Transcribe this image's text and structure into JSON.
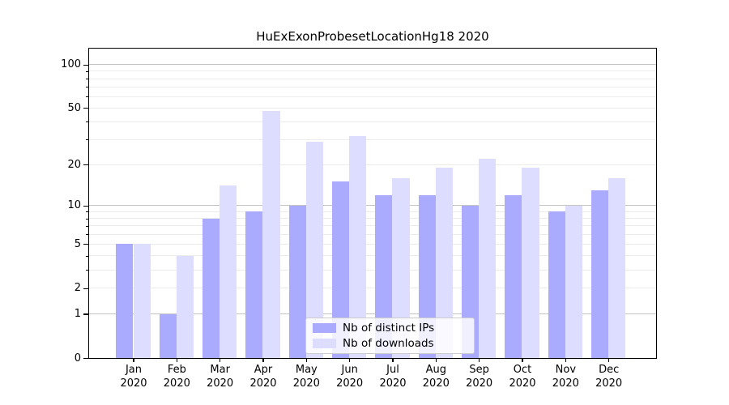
{
  "chart_data": {
    "type": "bar",
    "title": "HuExExonProbesetLocationHg18 2020",
    "categories": [
      "Jan",
      "Feb",
      "Mar",
      "Apr",
      "May",
      "Jun",
      "Jul",
      "Aug",
      "Sep",
      "Oct",
      "Nov",
      "Dec"
    ],
    "year": "2020",
    "series": [
      {
        "name": "Nb of distinct IPs",
        "color": "#aaaaff",
        "values": [
          5,
          1,
          8,
          9,
          10,
          15,
          12,
          12,
          10,
          12,
          9,
          13
        ]
      },
      {
        "name": "Nb of downloads",
        "color": "#ddddff",
        "values": [
          5,
          4,
          14,
          48,
          29,
          32,
          16,
          19,
          22,
          19,
          10,
          16
        ]
      }
    ],
    "xlabel": "",
    "ylabel": "",
    "scale": "log1p",
    "ylim": [
      0,
      130
    ],
    "yticks": [
      0,
      1,
      2,
      5,
      10,
      20,
      50,
      100
    ],
    "minor_ticks": [
      3,
      4,
      6,
      7,
      8,
      9,
      30,
      40,
      60,
      70,
      80,
      90
    ],
    "major_gridlines": [
      1,
      10,
      100
    ],
    "minor_gridlines": [
      2,
      3,
      4,
      5,
      6,
      7,
      8,
      9,
      20,
      30,
      40,
      50,
      60,
      70,
      80,
      90
    ],
    "grid": "horizontal",
    "legend_position": "bottom-center"
  },
  "colors": {
    "bar_distinct_ips": "#aaaaff",
    "bar_downloads": "#ddddff",
    "grid_minor": "#ececec",
    "grid_major": "#c4c4c4",
    "axis": "#000000",
    "legend_border": "#cccccc",
    "text": "#000000"
  }
}
